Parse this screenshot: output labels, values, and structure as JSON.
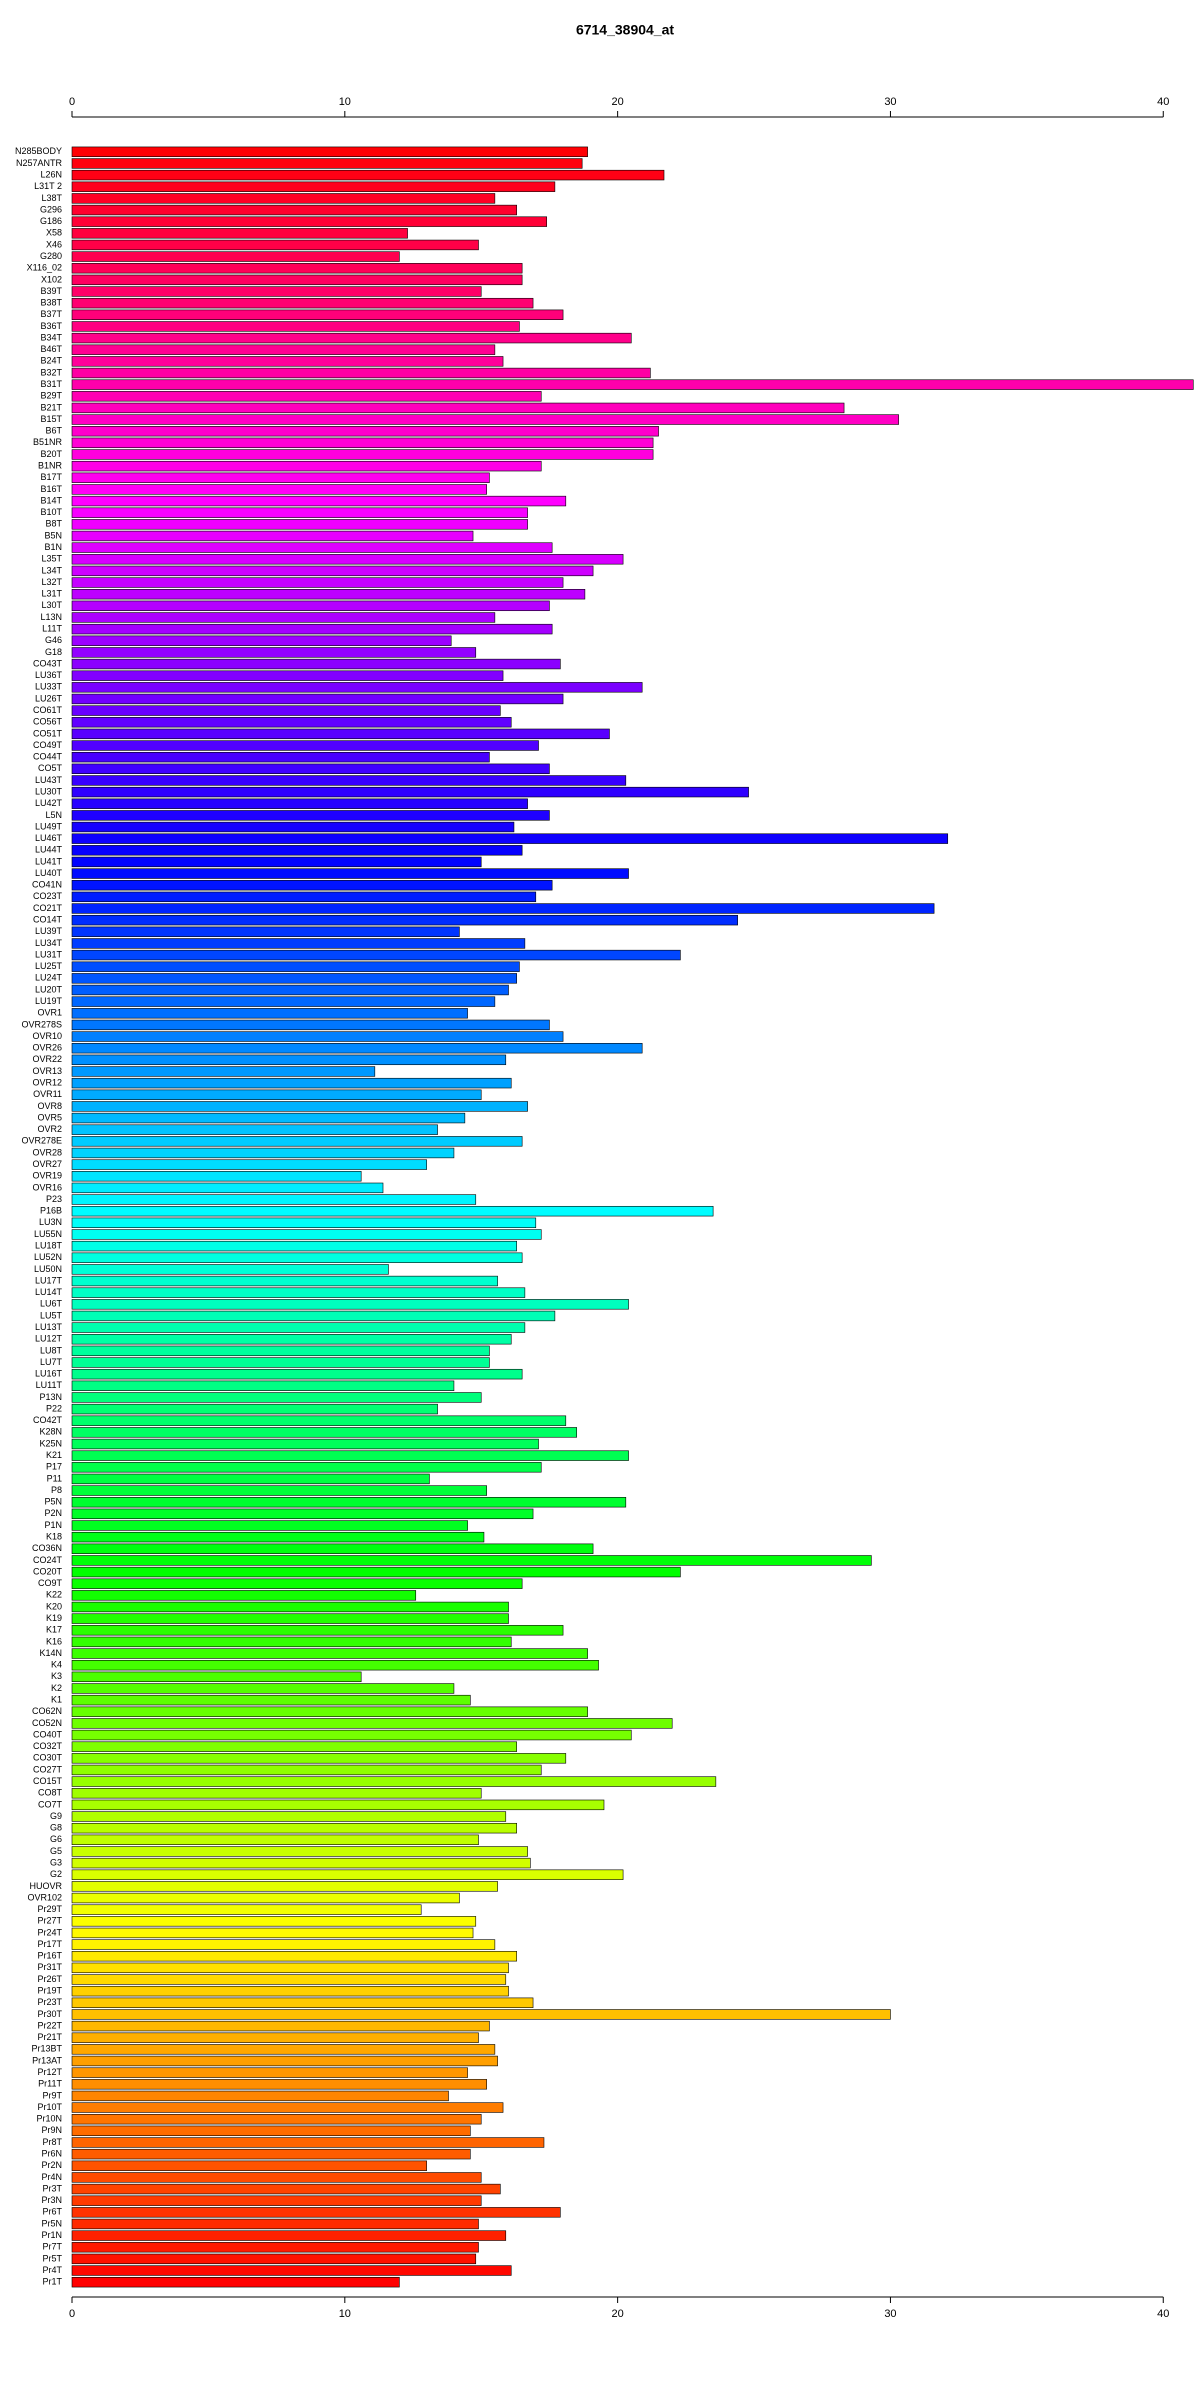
{
  "chart_data": {
    "type": "barh",
    "title": "6714_38904_at",
    "categories": [
      "N285BODY",
      "N257ANTR",
      "L26N",
      "L31T 2",
      "L38T",
      "G296",
      "G186",
      "X58",
      "X46",
      "G280",
      "X116_02",
      "X102",
      "B39T",
      "B38T",
      "B37T",
      "B36T",
      "B34T",
      "B46T",
      "B24T",
      "B32T",
      "B31T",
      "B29T",
      "B21T",
      "B15T",
      "B6T",
      "B51NR",
      "B20T",
      "B1NR",
      "B17T",
      "B16T",
      "B14T",
      "B10T",
      "B8T",
      "B5N",
      "B1N",
      "L35T",
      "L34T",
      "L32T",
      "L31T",
      "L30T",
      "L13N",
      "L11T",
      "G46",
      "G18",
      "CO43T",
      "LU36T",
      "LU33T",
      "LU26T",
      "CO61T",
      "CO56T",
      "CO51T",
      "CO49T",
      "CO44T",
      "CO5T",
      "LU43T",
      "LU30T",
      "LU42T",
      "L5N",
      "LU49T",
      "LU46T",
      "LU44T",
      "LU41T",
      "LU40T",
      "CO41N",
      "CO23T",
      "CO21T",
      "CO14T",
      "LU39T",
      "LU34T",
      "LU31T",
      "LU25T",
      "LU24T",
      "LU20T",
      "LU19T",
      "OVR1",
      "OVR278S",
      "OVR10",
      "OVR26",
      "OVR22",
      "OVR13",
      "OVR12",
      "OVR11",
      "OVR8",
      "OVR5",
      "OVR2",
      "OVR278E",
      "OVR28",
      "OVR27",
      "OVR19",
      "OVR16",
      "P23",
      "P16B",
      "LU3N",
      "LU55N",
      "LU18T",
      "LU52N",
      "LU50N",
      "LU17T",
      "LU14T",
      "LU6T",
      "LU5T",
      "LU13T",
      "LU12T",
      "LU8T",
      "LU7T",
      "LU16T",
      "LU11T",
      "P13N",
      "P22",
      "CO42T",
      "K28N",
      "K25N",
      "K21",
      "P17",
      "P11",
      "P8",
      "P5N",
      "P2N",
      "P1N",
      "K18",
      "CO36N",
      "CO24T",
      "CO20T",
      "CO9T",
      "K22",
      "K20",
      "K19",
      "K17",
      "K16",
      "K14N",
      "K4",
      "K3",
      "K2",
      "K1",
      "CO62N",
      "CO52N",
      "CO40T",
      "CO32T",
      "CO30T",
      "CO27T",
      "CO15T",
      "CO8T",
      "CO7T",
      "G9",
      "G8",
      "G6",
      "G5",
      "G3",
      "G2",
      "HUOVR",
      "OVR102",
      "Pr29T",
      "Pr27T",
      "Pr24T",
      "Pr17T",
      "Pr16T",
      "Pr31T",
      "Pr26T",
      "Pr19T",
      "Pr23T",
      "Pr30T",
      "Pr22T",
      "Pr21T",
      "Pr13BT",
      "Pr13AT",
      "Pr12T",
      "Pr11T",
      "Pr9T",
      "Pr10T",
      "Pr10N",
      "Pr9N",
      "Pr8T",
      "Pr6N",
      "Pr2N",
      "Pr4N",
      "Pr3T",
      "Pr3N",
      "Pr6T",
      "Pr5N",
      "Pr1N",
      "Pr7T",
      "Pr5T",
      "Pr4T",
      "Pr1T"
    ],
    "values": [
      18.9,
      18.7,
      21.7,
      17.7,
      15.5,
      16.3,
      17.4,
      12.3,
      14.9,
      12.0,
      16.5,
      16.5,
      15.0,
      16.9,
      18.0,
      16.4,
      20.5,
      15.5,
      15.8,
      21.2,
      41.1,
      17.2,
      28.3,
      30.3,
      21.5,
      21.3,
      21.3,
      17.2,
      15.3,
      15.2,
      18.1,
      16.7,
      16.7,
      14.7,
      17.6,
      20.2,
      19.1,
      18.0,
      18.8,
      17.5,
      15.5,
      17.6,
      13.9,
      14.8,
      17.9,
      15.8,
      20.9,
      18.0,
      15.7,
      16.1,
      19.7,
      17.1,
      15.3,
      17.5,
      20.3,
      24.8,
      16.7,
      17.5,
      16.2,
      32.1,
      16.5,
      15.0,
      20.4,
      17.6,
      17.0,
      31.6,
      24.4,
      14.2,
      16.6,
      22.3,
      16.4,
      16.3,
      16.0,
      15.5,
      14.5,
      17.5,
      18.0,
      20.9,
      15.9,
      11.1,
      16.1,
      15.0,
      16.7,
      14.4,
      13.4,
      16.5,
      14.0,
      13.0,
      10.6,
      11.4,
      14.8,
      23.5,
      17.0,
      17.2,
      16.3,
      16.5,
      11.6,
      15.6,
      16.6,
      20.4,
      17.7,
      16.6,
      16.1,
      15.3,
      15.3,
      16.5,
      14.0,
      15.0,
      13.4,
      18.1,
      18.5,
      17.1,
      20.4,
      17.2,
      13.1,
      15.2,
      20.3,
      16.9,
      14.5,
      15.1,
      19.1,
      29.3,
      22.3,
      16.5,
      12.6,
      16.0,
      16.0,
      18.0,
      16.1,
      18.9,
      19.3,
      10.6,
      14.0,
      14.6,
      18.9,
      22.0,
      20.5,
      16.3,
      18.1,
      17.2,
      23.6,
      15.0,
      19.5,
      15.9,
      16.3,
      14.9,
      16.7,
      16.8,
      20.2,
      15.6,
      14.2,
      12.8,
      14.8,
      14.7,
      15.5,
      16.3,
      16.0,
      15.9,
      16.0,
      16.9,
      30.0,
      15.3,
      14.9,
      15.5,
      15.6,
      14.5,
      15.2,
      13.8,
      15.8,
      15.0,
      14.6,
      17.3,
      14.6,
      13.0,
      15.0,
      15.7,
      15.0,
      17.9,
      14.9,
      15.9,
      14.9,
      14.8,
      16.1,
      12.0
    ],
    "color_scheme": "rainbow",
    "xlim": [
      0,
      41.2
    ],
    "xticks": [
      0,
      10,
      20,
      30,
      40
    ]
  }
}
